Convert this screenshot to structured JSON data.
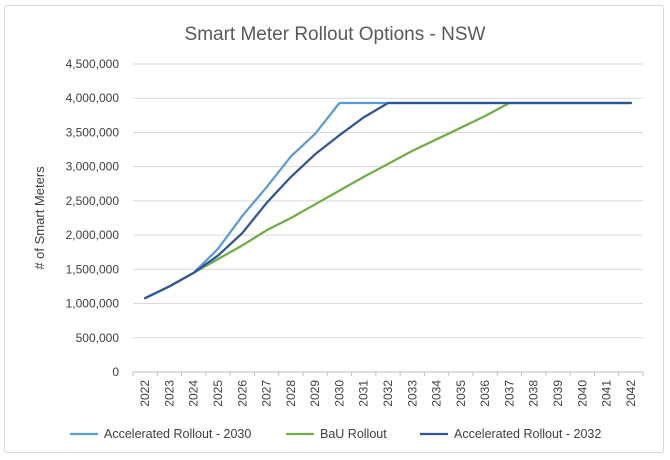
{
  "chart_data": {
    "type": "line",
    "title": "Smart Meter Rollout Options - NSW",
    "xlabel": "",
    "ylabel": "# of Smart Meters",
    "x": [
      "2022",
      "2023",
      "2024",
      "2025",
      "2026",
      "2027",
      "2028",
      "2029",
      "2030",
      "2031",
      "2032",
      "2033",
      "2034",
      "2035",
      "2036",
      "2037",
      "2038",
      "2039",
      "2040",
      "2041",
      "2042"
    ],
    "ylim": [
      0,
      4500000
    ],
    "yticks": [
      "0",
      "500,000",
      "1,000,000",
      "1,500,000",
      "2,000,000",
      "2,500,000",
      "3,000,000",
      "3,500,000",
      "4,000,000",
      "4,500,000"
    ],
    "ytick_values": [
      0,
      500000,
      1000000,
      1500000,
      2000000,
      2500000,
      3000000,
      3500000,
      4000000,
      4500000
    ],
    "grid": "horizontal",
    "legend_position": "bottom",
    "series": [
      {
        "name": "Accelerated Rollout - 2030",
        "color": "#5b9bd5",
        "values": [
          1080000,
          1250000,
          1450000,
          1800000,
          2280000,
          2700000,
          3150000,
          3480000,
          3930000,
          3930000,
          3930000,
          3930000,
          3930000,
          3930000,
          3930000,
          3930000,
          3930000,
          3930000,
          3930000,
          3930000,
          3930000
        ]
      },
      {
        "name": "BaU Rollout",
        "color": "#70ad47",
        "values": [
          1080000,
          1250000,
          1450000,
          1650000,
          1850000,
          2070000,
          2250000,
          2450000,
          2650000,
          2850000,
          3040000,
          3230000,
          3400000,
          3570000,
          3740000,
          3930000,
          3930000,
          3930000,
          3930000,
          3930000,
          3930000
        ]
      },
      {
        "name": "Accelerated Rollout - 2032",
        "color": "#2f5597",
        "values": [
          1080000,
          1250000,
          1450000,
          1700000,
          2030000,
          2470000,
          2850000,
          3180000,
          3460000,
          3720000,
          3930000,
          3930000,
          3930000,
          3930000,
          3930000,
          3930000,
          3930000,
          3930000,
          3930000,
          3930000,
          3930000
        ]
      }
    ]
  }
}
